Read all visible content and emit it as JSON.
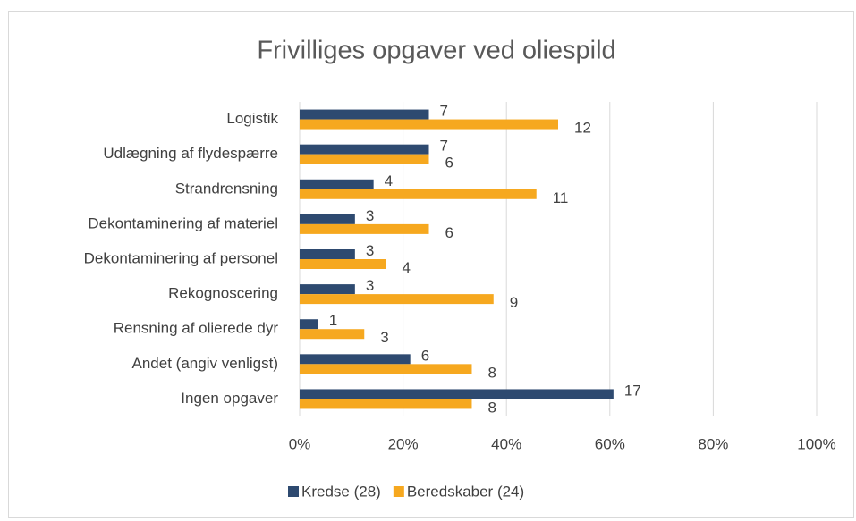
{
  "chart_data": {
    "type": "bar",
    "orientation": "horizontal",
    "title": "Frivilliges opgaver ved oliespild",
    "categories": [
      "Logistik",
      "Udlægning af flydespærre",
      "Strandrensning",
      "Dekontaminering af materiel",
      "Dekontaminering af personel",
      "Rekognoscering",
      "Rensning af olierede dyr",
      "Andet (angiv venligst)",
      "Ingen opgaver"
    ],
    "series": [
      {
        "name": "Kredse (28)",
        "color": "#2e4a70",
        "values": [
          25,
          25,
          14.3,
          10.7,
          10.7,
          10.7,
          3.6,
          21.4,
          60.7
        ],
        "value_labels": [
          "7",
          "7",
          "4",
          "3",
          "3",
          "3",
          "1",
          "6",
          "17"
        ]
      },
      {
        "name": "Beredskaber (24)",
        "color": "#f6a81f",
        "values": [
          50,
          25,
          45.8,
          25,
          16.7,
          37.5,
          12.5,
          33.3,
          33.3
        ],
        "value_labels": [
          "12",
          "6",
          "11",
          "6",
          "4",
          "9",
          "3",
          "8",
          "8"
        ]
      }
    ],
    "xlim": [
      0,
      100
    ],
    "xticks": [
      {
        "value": 0,
        "label": "0%"
      },
      {
        "value": 20,
        "label": "20%"
      },
      {
        "value": 40,
        "label": "40%"
      },
      {
        "value": 60,
        "label": "60%"
      },
      {
        "value": 80,
        "label": "80%"
      },
      {
        "value": 100,
        "label": "100%"
      }
    ],
    "grid": true,
    "legend": "bottom"
  }
}
